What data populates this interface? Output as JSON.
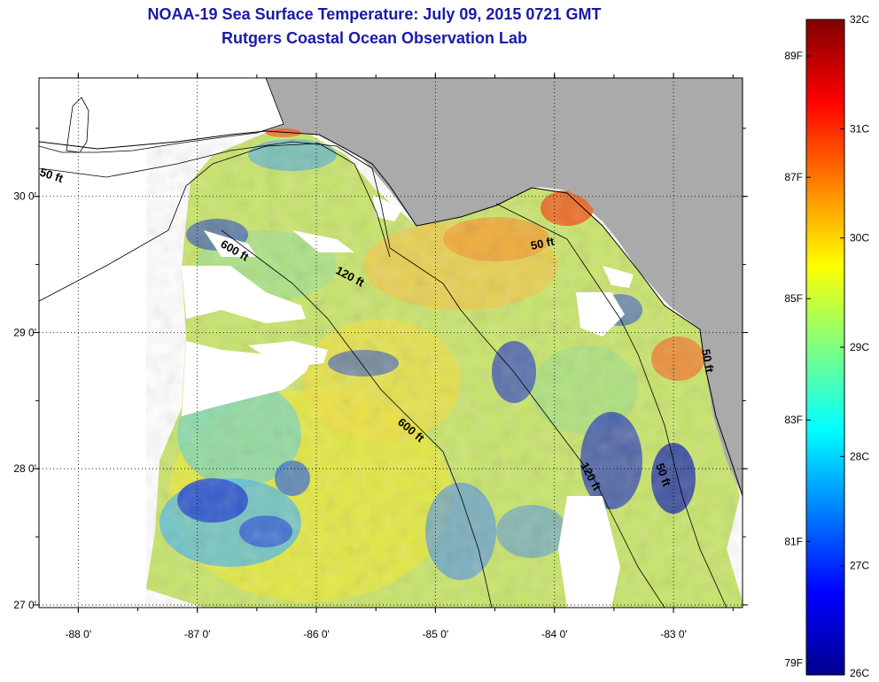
{
  "title": "NOAA-19 Sea Surface Temperature:  July 09, 2015 0721 GMT",
  "subtitle": "Rutgers Coastal Ocean Observation Lab",
  "map": {
    "lon_range": [
      -88.33,
      -82.42
    ],
    "lat_range": [
      26.98,
      30.87
    ],
    "lon_ticks": [
      {
        "value": -88,
        "label": "-88 0'"
      },
      {
        "value": -87,
        "label": "-87 0'"
      },
      {
        "value": -86,
        "label": "-86 0'"
      },
      {
        "value": -85,
        "label": "-85 0'"
      },
      {
        "value": -84,
        "label": "-84 0'"
      },
      {
        "value": -83,
        "label": "-83 0'"
      }
    ],
    "lat_ticks": [
      {
        "value": 30,
        "label": "30 0'"
      },
      {
        "value": 29,
        "label": "29 0'"
      },
      {
        "value": 28,
        "label": "28 0'"
      },
      {
        "value": 27,
        "label": "27 0'"
      }
    ],
    "contour_labels": [
      "50 ft",
      "600 ft",
      "120 ft",
      "50 ft",
      "600 ft",
      "120 ft",
      "50 ft",
      "50 ft"
    ],
    "colors": {
      "land": "#aaaaaa",
      "nodata": "#ffffff",
      "grid": "#000000"
    }
  },
  "colorbar": {
    "range_c": [
      26,
      32
    ],
    "celsius_labels": [
      "32C",
      "31C",
      "30C",
      "29C",
      "28C",
      "27C",
      "26C"
    ],
    "fahrenheit_labels": [
      "89F",
      "87F",
      "85F",
      "83F",
      "81F",
      "79F"
    ]
  }
}
